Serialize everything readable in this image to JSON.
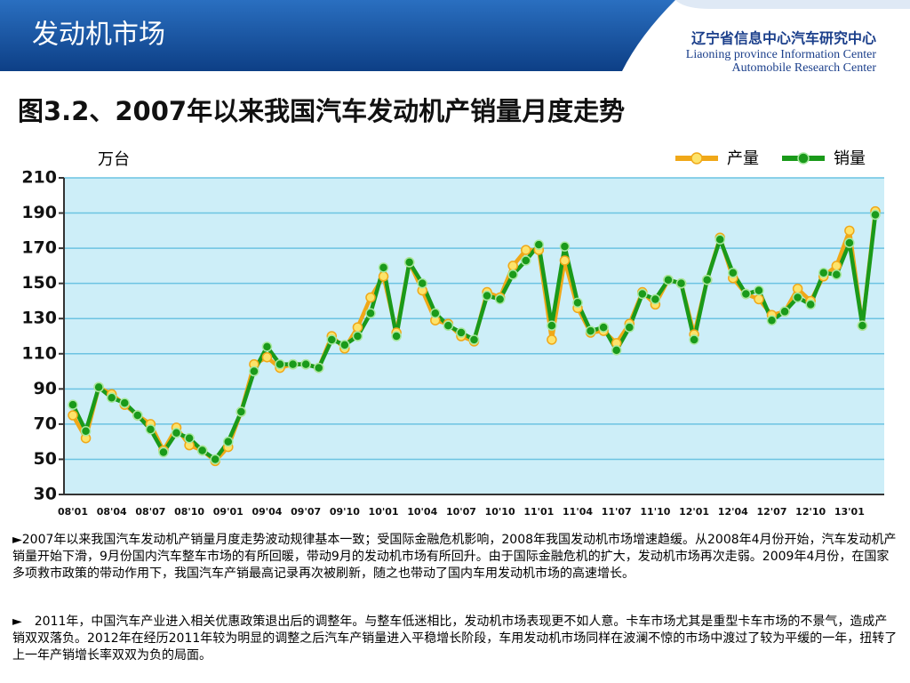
{
  "header": {
    "title": "发动机市场",
    "logo_cn": "辽宁省信息中心汽车研究中心",
    "logo_en1": "Liaoning province Information Center",
    "logo_en2": "Automobile Research Center"
  },
  "chart_data": {
    "type": "line",
    "title": "图3.2、2007年以来我国汽车发动机产销量月度走势",
    "y_label": "万台",
    "categories": [
      "08'01",
      null,
      null,
      "08'04",
      null,
      null,
      "08'07",
      null,
      null,
      "08'10",
      null,
      null,
      "09'01",
      null,
      null,
      "09'04",
      null,
      null,
      "09'07",
      null,
      null,
      "09'10",
      null,
      null,
      "10'01",
      null,
      null,
      "10'04",
      null,
      null,
      "10'07",
      null,
      null,
      "10'10",
      null,
      null,
      "11'01",
      null,
      null,
      "11'04",
      null,
      null,
      "11'07",
      null,
      null,
      "11'10",
      null,
      null,
      "12'01",
      null,
      null,
      "12'04",
      null,
      null,
      "12'07",
      null,
      null,
      "12'10",
      null,
      null,
      "13'01",
      null,
      null
    ],
    "series": [
      {
        "name": "产量",
        "color": "#f0a818",
        "values": [
          75,
          62,
          91,
          87,
          81,
          75,
          70,
          55,
          68,
          58,
          55,
          49,
          57,
          77,
          104,
          108,
          102,
          104,
          104,
          102,
          120,
          113,
          125,
          142,
          154,
          122,
          162,
          146,
          129,
          127,
          120,
          117,
          145,
          142,
          160,
          169,
          169,
          118,
          163,
          136,
          122,
          123,
          116,
          127,
          145,
          138,
          152,
          150,
          121,
          152,
          176,
          153,
          144,
          141,
          132,
          134,
          147,
          140,
          154,
          160,
          180,
          126,
          191
        ]
      },
      {
        "name": "销量",
        "color": "#1a9a1a",
        "values": [
          81,
          66,
          91,
          85,
          82,
          75,
          67,
          54,
          65,
          62,
          55,
          50,
          60,
          77,
          100,
          114,
          104,
          104,
          104,
          102,
          118,
          115,
          120,
          133,
          159,
          120,
          162,
          150,
          133,
          126,
          122,
          118,
          143,
          141,
          155,
          163,
          172,
          126,
          171,
          139,
          123,
          125,
          112,
          125,
          144,
          141,
          152,
          150,
          118,
          152,
          175,
          156,
          144,
          146,
          129,
          134,
          142,
          138,
          156,
          155,
          173,
          126,
          189
        ]
      }
    ],
    "ylim": [
      30,
      210
    ],
    "yticks": [
      30,
      50,
      70,
      90,
      110,
      130,
      150,
      170,
      190,
      210
    ],
    "grid": true,
    "legend": "top-right"
  },
  "notes": [
    "►2007年以来我国汽车发动机产销量月度走势波动规律基本一致；受国际金融危机影响，2008年我国发动机市场增速趋缓。从2008年4月份开始，汽车发动机产销量开始下滑，9月份国内汽车整车市场的有所回暖，带动9月的发动机市场有所回升。由于国际金融危机的扩大，发动机市场再次走弱。2009年4月份，在国家多项救市政策的带动作用下，我国汽车产销最高记录再次被刷新，随之也带动了国内车用发动机市场的高速增长。",
    "►　2011年，中国汽车产业进入相关优惠政策退出后的调整年。与整车低迷相比，发动机市场表现更不如人意。卡车市场尤其是重型卡车市场的不景气，造成产销双双落负。2012年在经历2011年较为明显的调整之后汽车产销量进入平稳增长阶段，车用发动机市场同样在波澜不惊的市场中渡过了较为平缓的一年，扭转了上一年产销增长率双双为负的局面。"
  ]
}
